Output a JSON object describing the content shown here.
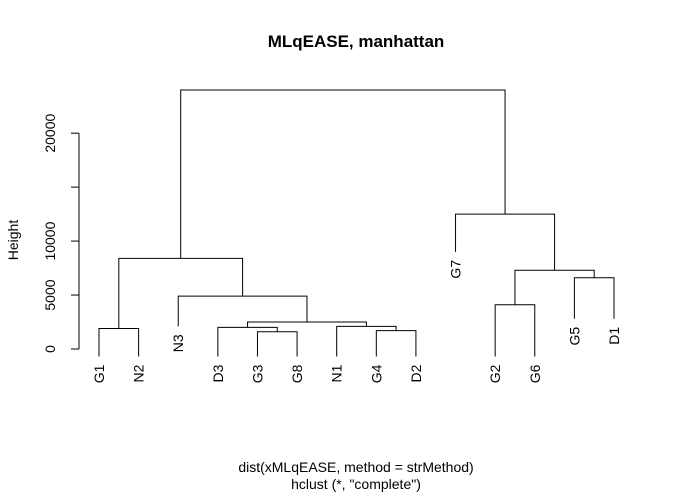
{
  "chart_data": {
    "type": "dendrogram",
    "title": "MLqEASE, manhattan",
    "ylabel": "Height",
    "xlabel": "dist(xMLqEASE, method = strMethod)",
    "sublabel": "hclust (*, \"complete\")",
    "ylim": [
      0,
      24000
    ],
    "yticks": [
      0,
      5000,
      10000,
      15000,
      20000
    ],
    "ytick_labels": [
      "0",
      "5000",
      "10000",
      "",
      "20000"
    ],
    "leaf_order": [
      "G1",
      "N2",
      "N3",
      "D3",
      "G3",
      "G8",
      "N1",
      "G4",
      "D2",
      "G7",
      "G2",
      "G6",
      "G5",
      "D1"
    ],
    "merges": [
      {
        "left": "G3",
        "right": "G8",
        "height": 1600
      },
      {
        "left": "G4",
        "right": "D2",
        "height": 1700
      },
      {
        "left": "G1",
        "right": "N2",
        "height": 1900
      },
      {
        "left": "D3",
        "right": "G3+G8",
        "height": 2000
      },
      {
        "left": "N1",
        "right": "G4+D2",
        "height": 2100
      },
      {
        "left": "D3+G3+G8",
        "right": "N1+G4+D2",
        "height": 2500
      },
      {
        "left": "G2",
        "right": "G6",
        "height": 4100
      },
      {
        "left": "N3",
        "right": "D3+G3+G8+N1+G4+D2",
        "height": 4900
      },
      {
        "left": "G5",
        "right": "D1",
        "height": 6600
      },
      {
        "left": "G2+G6",
        "right": "G5+D1",
        "height": 7300
      },
      {
        "left": "G1+N2",
        "right": "N3+D3+G3+G8+N1+G4+D2",
        "height": 8400
      },
      {
        "left": "G7",
        "right": "G2+G6+G5+D1",
        "height": 12500
      },
      {
        "left": "G1+N2+N3+D3+G3+G8+N1+G4+D2",
        "right": "G7+G2+G6+G5+D1",
        "height": 24000
      }
    ],
    "leaf_heights": {
      "G1": -700,
      "N2": -700,
      "N3": 2100,
      "D3": -700,
      "G3": -700,
      "G8": -700,
      "N1": -700,
      "G4": -700,
      "D2": -700,
      "G7": 9000,
      "G2": -700,
      "G6": -700,
      "G5": 2800,
      "D1": 2800
    }
  }
}
